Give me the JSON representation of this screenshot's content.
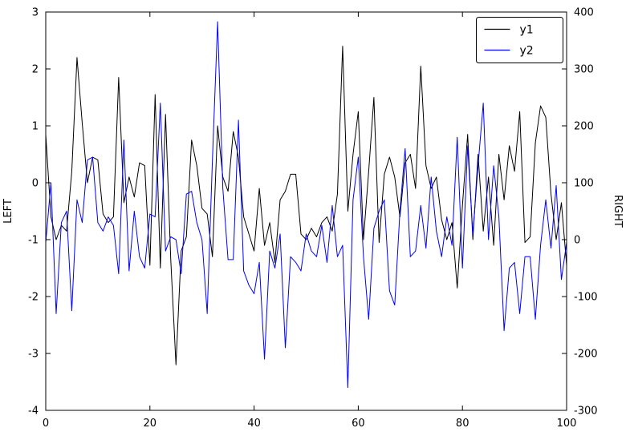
{
  "figure": {
    "background": "#ffffff",
    "axis_color": "#000000"
  },
  "chart_data": {
    "type": "line",
    "title": "",
    "xlabel": "",
    "grid": false,
    "x_range": [
      0,
      100
    ],
    "xticks": [
      0,
      20,
      40,
      60,
      80,
      100
    ],
    "left_axis": {
      "label": "LEFT",
      "range": [
        -4,
        3
      ],
      "ticks": [
        -4,
        -3,
        -2,
        -1,
        0,
        1,
        2,
        3
      ]
    },
    "right_axis": {
      "label": "RIGHT",
      "range": [
        -300,
        400
      ],
      "ticks": [
        -300,
        -200,
        -100,
        0,
        100,
        200,
        300,
        400
      ]
    },
    "legend": {
      "position": "upper right",
      "entries": [
        {
          "label": "y1",
          "color": "#000000"
        },
        {
          "label": "y2",
          "color": "#0000ff"
        }
      ]
    },
    "x_start": 0,
    "x_step": 1,
    "series": [
      {
        "name": "y1",
        "axis": "left",
        "color": "#000000",
        "values": [
          0.85,
          -0.6,
          -1.0,
          -0.75,
          -0.85,
          0.2,
          2.2,
          1.05,
          0.0,
          0.45,
          0.4,
          -0.55,
          -0.7,
          -0.6,
          1.85,
          -0.35,
          0.1,
          -0.25,
          0.35,
          0.3,
          -1.45,
          1.55,
          -1.5,
          1.2,
          -1.35,
          -3.2,
          -1.2,
          -0.95,
          0.75,
          0.3,
          -0.45,
          -0.55,
          -1.3,
          1.0,
          0.1,
          -0.15,
          0.9,
          0.45,
          -0.6,
          -0.9,
          -1.2,
          -0.1,
          -1.1,
          -0.7,
          -1.4,
          -0.3,
          -0.15,
          0.15,
          0.15,
          -0.9,
          -1.0,
          -0.8,
          -0.95,
          -0.7,
          -0.6,
          -0.85,
          -0.2,
          2.4,
          -0.5,
          0.5,
          1.25,
          -1.0,
          0.2,
          1.5,
          -1.05,
          0.15,
          0.45,
          0.1,
          -0.6,
          0.35,
          0.5,
          -0.1,
          2.05,
          0.3,
          -0.1,
          0.1,
          -0.65,
          -1.0,
          -0.7,
          -1.85,
          -0.4,
          0.85,
          -1.0,
          0.5,
          -0.85,
          0.1,
          -1.1,
          0.5,
          -0.3,
          0.65,
          0.2,
          1.25,
          -1.05,
          -0.95,
          0.7,
          1.35,
          1.15,
          -0.2,
          -1.0,
          -0.35,
          -1.45
        ]
      },
      {
        "name": "y2",
        "axis": "right",
        "color": "#0000ff",
        "values": [
          -5,
          100,
          -130,
          30,
          50,
          -125,
          70,
          30,
          140,
          145,
          30,
          15,
          40,
          25,
          -60,
          175,
          -55,
          50,
          -30,
          -50,
          45,
          40,
          240,
          -20,
          5,
          0,
          -60,
          80,
          85,
          30,
          0,
          -130,
          140,
          383,
          90,
          -35,
          -35,
          210,
          -55,
          -80,
          -95,
          -40,
          -210,
          -20,
          -50,
          10,
          -190,
          -30,
          -40,
          -55,
          10,
          -20,
          -30,
          25,
          -40,
          60,
          -30,
          -10,
          -260,
          70,
          145,
          -30,
          -140,
          20,
          50,
          70,
          -90,
          -115,
          50,
          160,
          -30,
          -20,
          60,
          -15,
          110,
          15,
          -30,
          40,
          -10,
          180,
          -50,
          165,
          10,
          130,
          240,
          0,
          130,
          40,
          -160,
          -50,
          -40,
          -130,
          -30,
          -30,
          -140,
          -10,
          70,
          -15,
          95,
          -70,
          -5
        ]
      }
    ]
  }
}
